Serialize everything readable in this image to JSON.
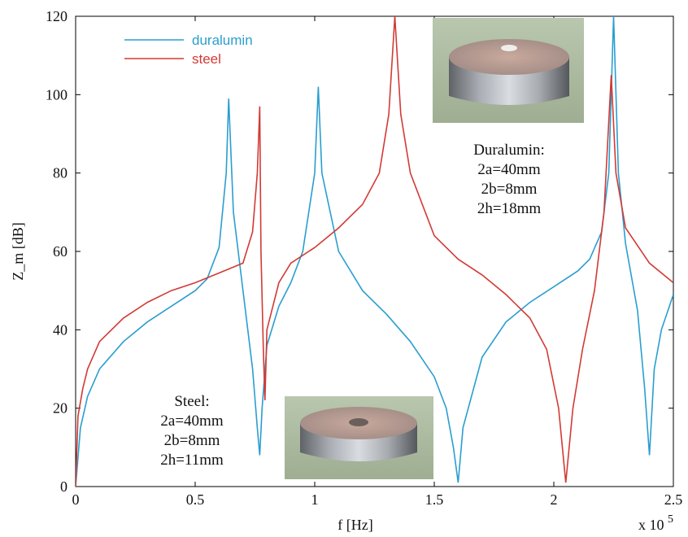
{
  "chart_data": {
    "type": "line",
    "xlabel": "f [Hz]",
    "ylabel": "Z_m [dB]",
    "x_multiplier_label": "x 10",
    "x_multiplier_exp": "5",
    "xlim": [
      0,
      2.5
    ],
    "ylim": [
      0,
      120
    ],
    "x_ticks": [
      "0",
      "0.5",
      "1",
      "1.5",
      "2",
      "2.5"
    ],
    "y_ticks": [
      "0",
      "20",
      "40",
      "60",
      "80",
      "100",
      "120"
    ],
    "grid": false,
    "legend_position": "top-left",
    "series": [
      {
        "name": "duralumin",
        "color": "#2a9ecf",
        "points": [
          [
            0,
            0
          ],
          [
            0.02,
            15
          ],
          [
            0.05,
            23
          ],
          [
            0.1,
            30
          ],
          [
            0.2,
            37
          ],
          [
            0.3,
            42
          ],
          [
            0.4,
            46
          ],
          [
            0.5,
            50
          ],
          [
            0.55,
            53
          ],
          [
            0.6,
            61
          ],
          [
            0.63,
            80
          ],
          [
            0.64,
            99
          ],
          [
            0.66,
            70
          ],
          [
            0.7,
            50
          ],
          [
            0.74,
            30
          ],
          [
            0.76,
            15
          ],
          [
            0.77,
            8
          ],
          [
            0.78,
            20
          ],
          [
            0.8,
            36
          ],
          [
            0.85,
            46
          ],
          [
            0.9,
            52
          ],
          [
            0.95,
            60
          ],
          [
            1.0,
            80
          ],
          [
            1.015,
            102
          ],
          [
            1.03,
            80
          ],
          [
            1.1,
            60
          ],
          [
            1.2,
            50
          ],
          [
            1.3,
            44
          ],
          [
            1.4,
            37
          ],
          [
            1.5,
            28
          ],
          [
            1.55,
            20
          ],
          [
            1.58,
            10
          ],
          [
            1.6,
            1
          ],
          [
            1.62,
            15
          ],
          [
            1.7,
            33
          ],
          [
            1.8,
            42
          ],
          [
            1.9,
            47
          ],
          [
            2.0,
            51
          ],
          [
            2.1,
            55
          ],
          [
            2.15,
            58
          ],
          [
            2.2,
            65
          ],
          [
            2.23,
            80
          ],
          [
            2.25,
            120
          ],
          [
            2.27,
            80
          ],
          [
            2.3,
            62
          ],
          [
            2.35,
            45
          ],
          [
            2.38,
            25
          ],
          [
            2.4,
            8
          ],
          [
            2.42,
            30
          ],
          [
            2.45,
            40
          ],
          [
            2.5,
            49
          ]
        ]
      },
      {
        "name": "steel",
        "color": "#d23a35",
        "points": [
          [
            0,
            0
          ],
          [
            0.01,
            18
          ],
          [
            0.03,
            25
          ],
          [
            0.05,
            30
          ],
          [
            0.1,
            37
          ],
          [
            0.2,
            43
          ],
          [
            0.3,
            47
          ],
          [
            0.4,
            50
          ],
          [
            0.5,
            52
          ],
          [
            0.6,
            54.5
          ],
          [
            0.7,
            57
          ],
          [
            0.74,
            65
          ],
          [
            0.76,
            80
          ],
          [
            0.77,
            97
          ],
          [
            0.775,
            60
          ],
          [
            0.785,
            35
          ],
          [
            0.792,
            22
          ],
          [
            0.8,
            40
          ],
          [
            0.85,
            52
          ],
          [
            0.9,
            57
          ],
          [
            1.0,
            61
          ],
          [
            1.1,
            66
          ],
          [
            1.2,
            72
          ],
          [
            1.27,
            80
          ],
          [
            1.31,
            95
          ],
          [
            1.335,
            120
          ],
          [
            1.36,
            95
          ],
          [
            1.4,
            80
          ],
          [
            1.5,
            64
          ],
          [
            1.6,
            58
          ],
          [
            1.7,
            54
          ],
          [
            1.8,
            49
          ],
          [
            1.9,
            43
          ],
          [
            1.97,
            35
          ],
          [
            2.02,
            20
          ],
          [
            2.05,
            1
          ],
          [
            2.08,
            20
          ],
          [
            2.12,
            35
          ],
          [
            2.17,
            50
          ],
          [
            2.21,
            70
          ],
          [
            2.24,
            105
          ],
          [
            2.26,
            80
          ],
          [
            2.3,
            66
          ],
          [
            2.4,
            57
          ],
          [
            2.5,
            52
          ]
        ]
      }
    ],
    "annotations": [
      {
        "lines": [
          "Duralumin:",
          "2a=40mm",
          "2b=8mm",
          "2h=18mm"
        ]
      },
      {
        "lines": [
          "Steel:",
          "2a=40mm",
          "2b=8mm",
          "2h=11mm"
        ]
      }
    ]
  }
}
